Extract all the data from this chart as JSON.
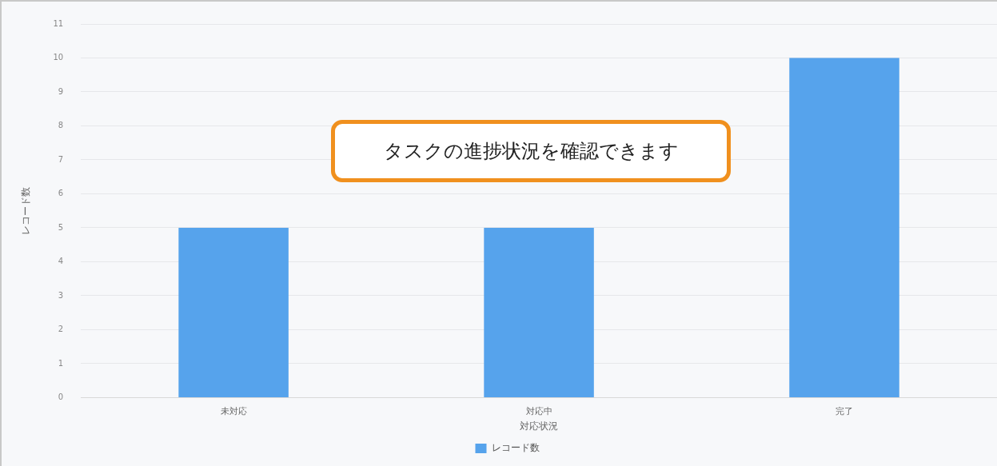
{
  "chart_data": {
    "type": "bar",
    "xlabel": "対応状況",
    "ylabel": "レコード数",
    "categories": [
      "未対応",
      "対応中",
      "完了"
    ],
    "series": [
      {
        "name": "レコード数",
        "color": "#56a3ec",
        "values": [
          5,
          5,
          10
        ]
      }
    ],
    "ylim": [
      0,
      11
    ],
    "yticks": [
      0,
      1,
      2,
      3,
      4,
      5,
      6,
      7,
      8,
      9,
      10,
      11
    ],
    "grid": "y",
    "legend": "bottom",
    "annotations": [
      "タスクの進捗状況を確認できます"
    ]
  }
}
